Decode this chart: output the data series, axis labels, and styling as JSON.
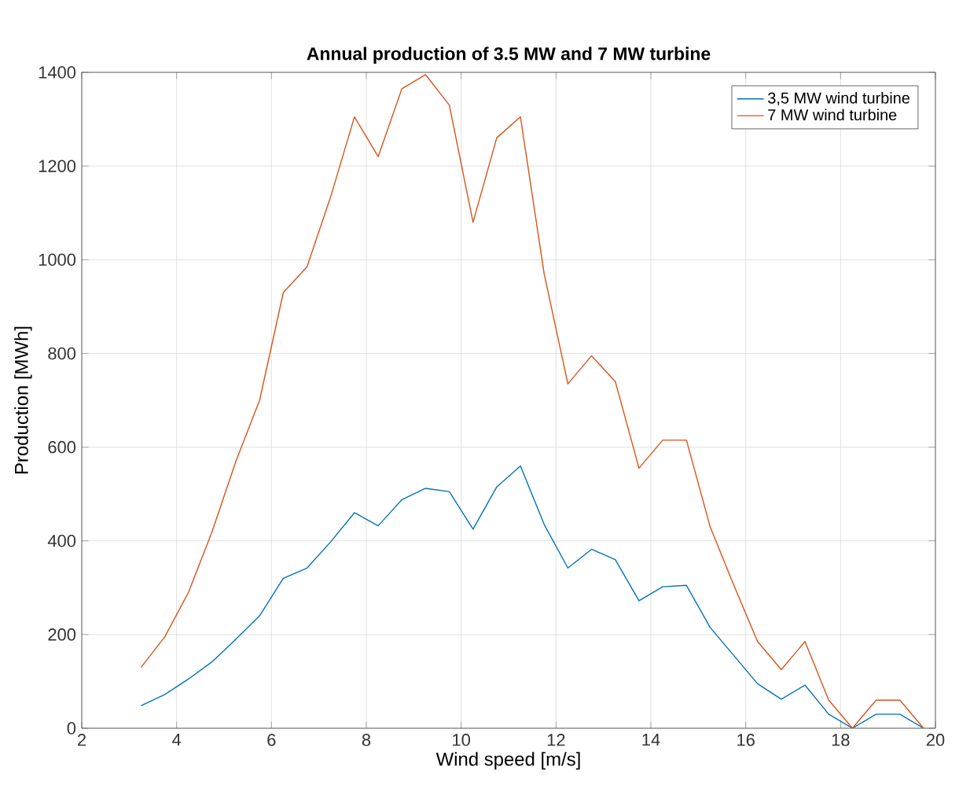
{
  "chart_data": {
    "type": "line",
    "title": "Annual production of 3.5 MW and 7 MW turbine",
    "xlabel": "Wind speed [m/s]",
    "ylabel": "Production [MWh]",
    "x": [
      3.25,
      3.75,
      4.25,
      4.75,
      5.25,
      5.75,
      6.25,
      6.75,
      7.25,
      7.75,
      8.25,
      8.75,
      9.25,
      9.75,
      10.25,
      10.75,
      11.25,
      11.75,
      12.25,
      12.75,
      13.25,
      13.75,
      14.25,
      14.75,
      15.25,
      15.75,
      16.25,
      16.75,
      17.25,
      17.75,
      18.25,
      18.75,
      19.25,
      19.75
    ],
    "series": [
      {
        "name": "3,5 MW wind turbine",
        "color": "#0072bd",
        "values": [
          48,
          72,
          105,
          142,
          190,
          240,
          320,
          342,
          398,
          460,
          432,
          488,
          512,
          505,
          425,
          515,
          560,
          435,
          342,
          382,
          360,
          272,
          302,
          305,
          215,
          155,
          95,
          62,
          92,
          30,
          0,
          30,
          30,
          0
        ]
      },
      {
        "name": "7 MW wind turbine",
        "color": "#d95319",
        "values": [
          130,
          195,
          290,
          420,
          570,
          700,
          930,
          985,
          1135,
          1305,
          1220,
          1365,
          1395,
          1330,
          1080,
          1260,
          1305,
          970,
          735,
          795,
          740,
          555,
          615,
          615,
          430,
          305,
          185,
          125,
          185,
          60,
          0,
          60,
          60,
          0
        ]
      }
    ],
    "xlim": [
      2,
      20
    ],
    "xticks": [
      2,
      4,
      6,
      8,
      10,
      12,
      14,
      16,
      18,
      20
    ],
    "ylim": [
      0,
      1400
    ],
    "yticks": [
      0,
      200,
      400,
      600,
      800,
      1000,
      1200,
      1400
    ],
    "grid": true,
    "legend": "top right",
    "marker": "none",
    "line_style": "solid"
  }
}
